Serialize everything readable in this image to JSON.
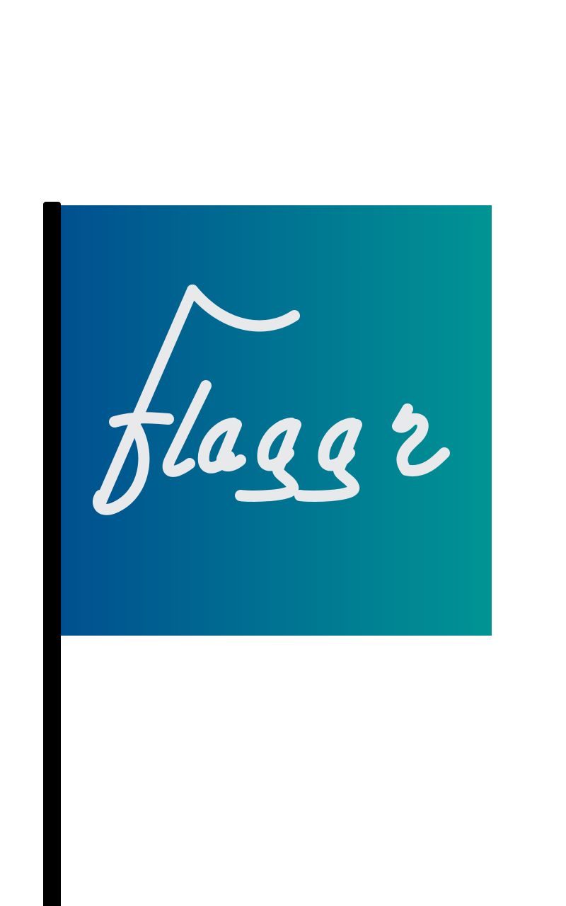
{
  "logo": {
    "wordmark": "flaggr",
    "gradient_start": "#00508f",
    "gradient_end": "#009494",
    "lettering_color": "#e8e9ea",
    "pole_color": "#000000",
    "background": "#ffffff"
  }
}
